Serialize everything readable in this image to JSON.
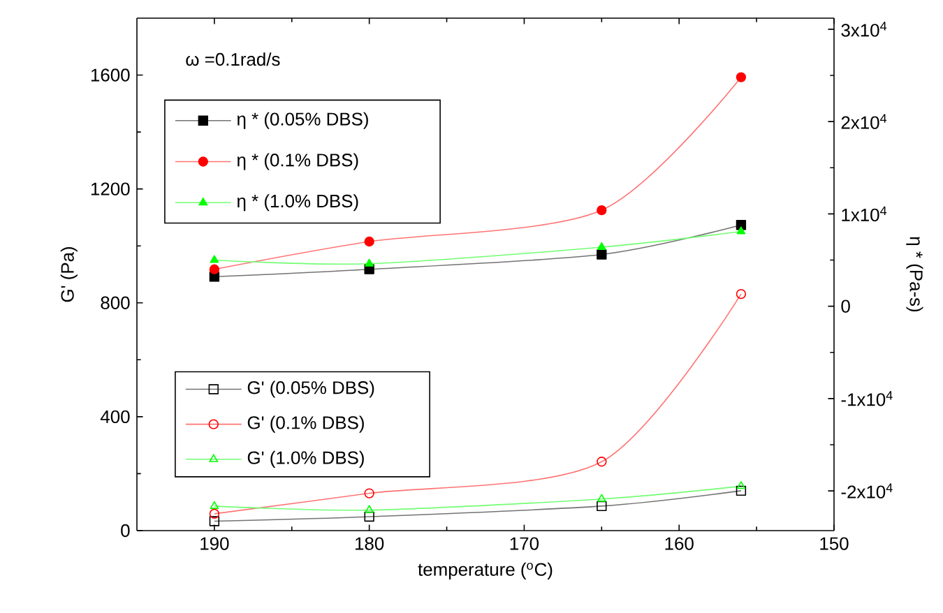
{
  "chart_data": {
    "type": "line",
    "xlabel": "temperature ($^{o}$C)",
    "ylabel": "G' (Pa)",
    "y2label": "η * (Pa-s)",
    "annotations": [
      "ω =0.1rad/s"
    ],
    "xlim": [
      195,
      150
    ],
    "xticks": [
      190,
      180,
      170,
      160,
      150
    ],
    "ylim": [
      0,
      1800
    ],
    "yticks": [
      0,
      400,
      800,
      1200,
      1600
    ],
    "y2lim": [
      -24300,
      31200
    ],
    "y2ticks": [
      {
        "value": -20000,
        "label": "-2x10$^{4}$"
      },
      {
        "value": -10000,
        "label": "-1x10$^{4}$"
      },
      0,
      {
        "value": 10000,
        "label": "1x10$^{4}$"
      },
      {
        "value": 20000,
        "label": "2x10$^{4}$"
      },
      {
        "value": 30000,
        "label": "3x10$^{4}$"
      }
    ],
    "legend": "left",
    "series": [
      {
        "name": "η * (0.05% DBS)",
        "color": "#000000",
        "marker": "square",
        "axis": "y2",
        "x": [
          190,
          180,
          165,
          156
        ],
        "values": [
          3200,
          4000,
          5600,
          8800
        ]
      },
      {
        "name": "η * (0.1% DBS)",
        "color": "#ff0000",
        "marker": "circle",
        "axis": "y2",
        "x": [
          190,
          180,
          165,
          156
        ],
        "values": [
          4000,
          7000,
          10400,
          24800
        ]
      },
      {
        "name": "η * (1.0% DBS)",
        "color": "#00ff00",
        "marker": "triangle",
        "axis": "y2",
        "x": [
          190,
          180,
          165,
          156
        ],
        "values": [
          5000,
          4600,
          6400,
          8100
        ]
      },
      {
        "name": "G' (0.05% DBS)",
        "color": "#000000",
        "marker": "square",
        "axis": "y",
        "x": [
          190,
          180,
          165,
          156
        ],
        "values": [
          33,
          49,
          86,
          140
        ]
      },
      {
        "name": "G' (0.1% DBS)",
        "color": "#ff0000",
        "marker": "circle",
        "axis": "y",
        "x": [
          190,
          180,
          165,
          156
        ],
        "values": [
          59,
          131,
          242,
          831
        ]
      },
      {
        "name": "G' (1.0% DBS)",
        "color": "#00ff00",
        "marker": "triangle",
        "axis": "y",
        "x": [
          190,
          180,
          165,
          156
        ],
        "values": [
          86,
          72,
          111,
          156
        ]
      }
    ]
  }
}
